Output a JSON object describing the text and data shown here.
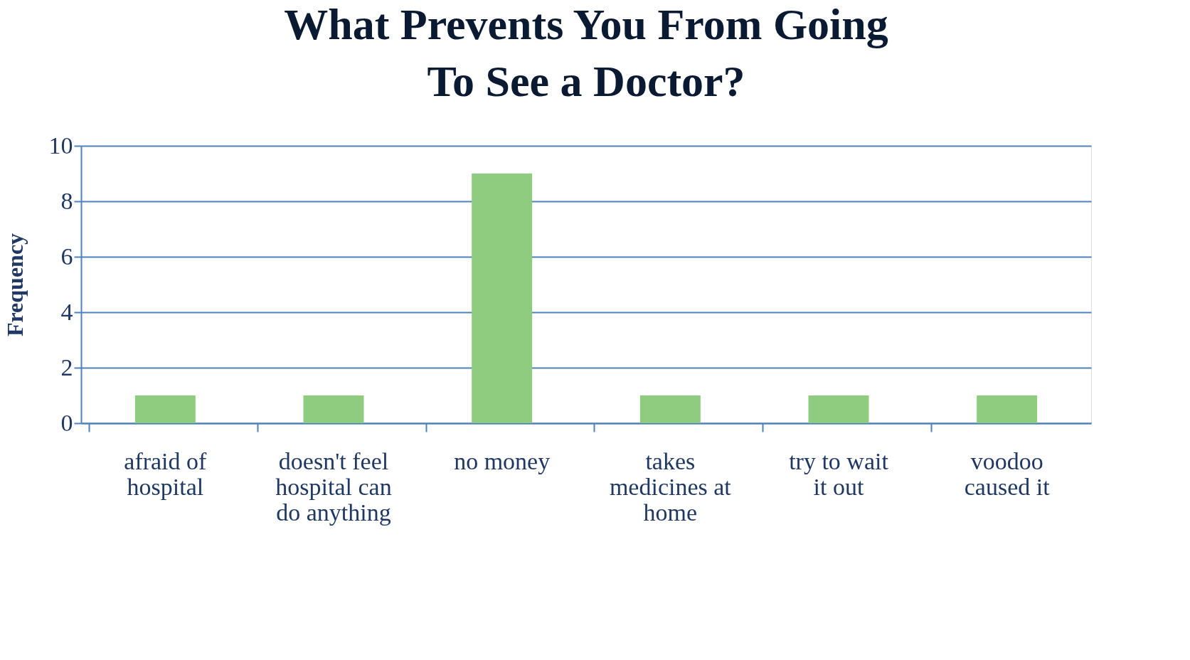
{
  "chart_data": {
    "type": "bar",
    "title": "What Prevents You From Going To See a Doctor?",
    "ylabel": "Frequency",
    "categories": [
      "afraid of hospital",
      "doesn't feel hospital can do anything",
      "no money",
      "takes medicines at home",
      "try to wait it out",
      "voodoo caused it"
    ],
    "values": [
      1,
      1,
      9,
      1,
      1,
      1
    ],
    "color": "#8fcc80",
    "ylim": [
      0,
      10
    ],
    "yticks": [
      0,
      2,
      4,
      6,
      8,
      10
    ],
    "grid": "y"
  }
}
